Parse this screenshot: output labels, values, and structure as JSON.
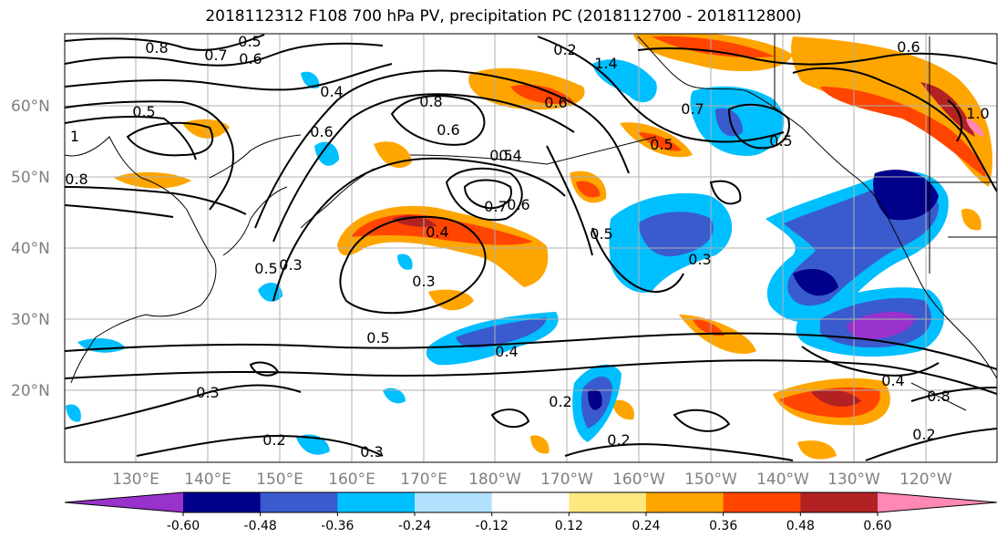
{
  "title": "2018112312 F108 700 hPa PV, precipitation PC (2018112700 - 2018112800)",
  "lat_labels": [
    "60°N",
    "50°N",
    "40°N",
    "30°N",
    "20°N"
  ],
  "lon_labels": [
    "130°E",
    "140°E",
    "150°E",
    "160°E",
    "170°E",
    "180°W",
    "170°W",
    "160°W",
    "150°W",
    "140°W",
    "130°W",
    "120°W"
  ],
  "colorbar": {
    "colors": [
      "#9932cc",
      "#00008b",
      "#3a5bcd",
      "#00bfff",
      "#b0e2ff",
      "#ffffff",
      "#ffe880",
      "#ffa500",
      "#ff4500",
      "#b22222",
      "#ff88b4"
    ],
    "tick_labels": [
      "-0.60",
      "-0.48",
      "-0.36",
      "-0.24",
      "-0.12",
      "0.12",
      "0.24",
      "0.36",
      "0.48",
      "0.60"
    ]
  },
  "contour_labels": [
    "0.8",
    "0.5",
    "0.7",
    "0.6",
    "0.6",
    "0.5",
    "1",
    "0.8",
    "0.4",
    "0.3",
    "0.8",
    "0.6",
    "0.5",
    "0.7",
    "0.6",
    "0.4",
    "0.3",
    "0.5",
    "0.4",
    "0.3",
    "0.2",
    "0.3",
    "0.2",
    "0.2",
    "1.4",
    "0.6",
    "0.7",
    "0.5",
    "0.5",
    "0.6",
    "1.0",
    "0.8",
    "0.5",
    "0.3",
    "0.4",
    "0.4",
    "0.5",
    "0.2",
    "0.2"
  ]
}
